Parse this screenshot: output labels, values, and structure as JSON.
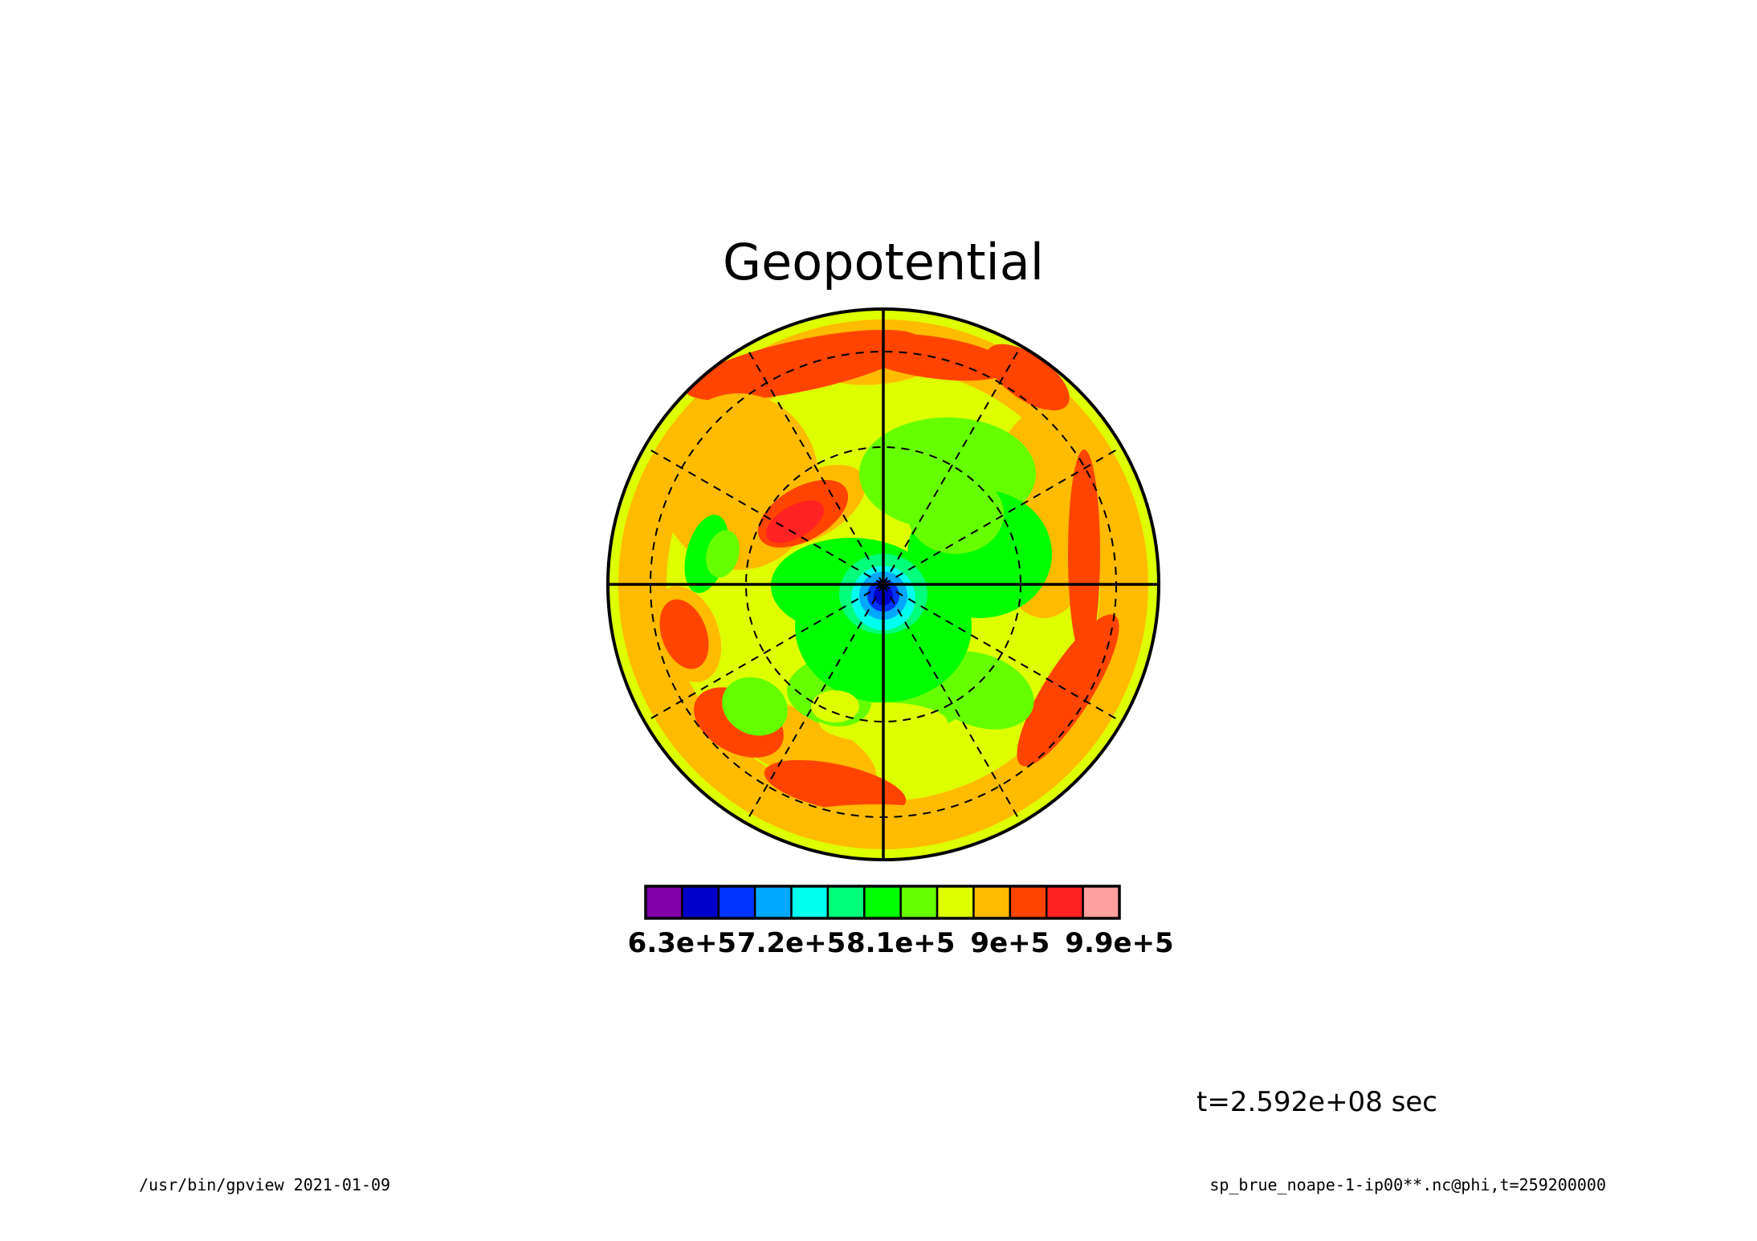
{
  "chart_data": {
    "type": "heatmap",
    "projection": "polar-stereographic",
    "title": "Geopotential",
    "colorbar": {
      "colors": [
        "#7f00a8",
        "#0000cc",
        "#0033ff",
        "#00a8ff",
        "#00ffee",
        "#00ff7a",
        "#00ff00",
        "#66ff00",
        "#ddff00",
        "#ffbb00",
        "#ff4400",
        "#ff2222",
        "#ff9f9f"
      ],
      "tick_labels": [
        "6.3e+5",
        "7.2e+5",
        "8.1e+5",
        "9e+5",
        "9.9e+5"
      ],
      "tick_values": [
        630000,
        720000,
        810000,
        900000,
        990000
      ],
      "levels": [
        600000,
        630000,
        660000,
        690000,
        720000,
        750000,
        780000,
        810000,
        840000,
        870000,
        900000,
        930000,
        960000,
        990000,
        1020000
      ]
    },
    "time_label": "t=2.592e+08 sec",
    "grid": true,
    "latitude_circles": 3,
    "longitude_lines": 12,
    "regions": [
      {
        "level": 9,
        "shape": "annulus"
      },
      {
        "level": 10,
        "shape": "blob"
      },
      {
        "level": 11,
        "shape": "blob"
      },
      {
        "level": 7,
        "shape": "blob"
      },
      {
        "level": 6,
        "shape": "blob"
      },
      {
        "level": 4,
        "shape": "blob"
      },
      {
        "level": 3,
        "shape": "blob"
      },
      {
        "level": 2,
        "shape": "blob"
      },
      {
        "level": 1,
        "shape": "blob"
      }
    ]
  },
  "footer": {
    "left": "/usr/bin/gpview   2021-01-09",
    "right": "sp_brue_noape-1-ip00**.nc@phi,t=259200000"
  }
}
